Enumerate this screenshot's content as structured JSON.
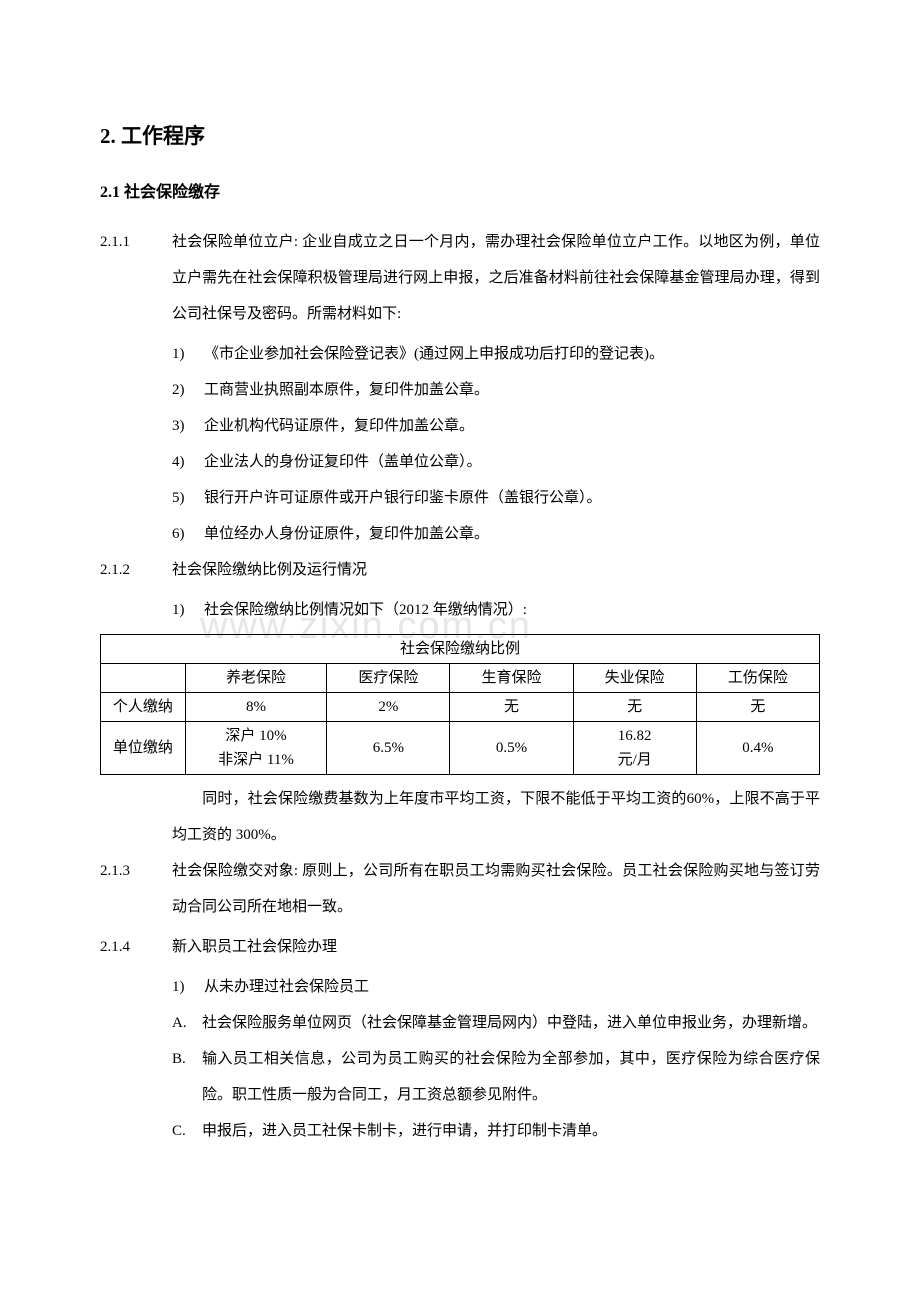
{
  "heading1": "2.  工作程序",
  "heading2": "2.1  社会保险缴存",
  "watermark": "www.zixin.com.cn",
  "section_2_1_1": {
    "num": "2.1.1",
    "text": "社会保险单位立户: 企业自成立之日一个月内，需办理社会保险单位立户工作。以地区为例，单位立户需先在社会保障积极管理局进行网上申报，之后准备材料前往社会保障基金管理局办理，得到公司社保号及密码。所需材料如下:",
    "items": [
      {
        "n": "1)",
        "t": "《市企业参加社会保险登记表》(通过网上申报成功后打印的登记表)。"
      },
      {
        "n": "2)",
        "t": "工商营业执照副本原件，复印件加盖公章。"
      },
      {
        "n": "3)",
        "t": "企业机构代码证原件，复印件加盖公章。"
      },
      {
        "n": "4)",
        "t": "企业法人的身份证复印件（盖单位公章）。"
      },
      {
        "n": "5)",
        "t": "银行开户许可证原件或开户银行印鉴卡原件（盖银行公章）。"
      },
      {
        "n": "6)",
        "t": "单位经办人身份证原件，复印件加盖公章。"
      }
    ]
  },
  "section_2_1_2": {
    "num": "2.1.2",
    "title": "社会保险缴纳比例及运行情况",
    "item1": {
      "n": "1)",
      "t": "社会保险缴纳比例情况如下（2012 年缴纳情况）:"
    },
    "after_para": "　　同时，社会保险缴费基数为上年度市平均工资，下限不能低于平均工资的60%，上限不高于平均工资的 300%。"
  },
  "table": {
    "title": "社会保险缴纳比例",
    "head": [
      "",
      "养老保险",
      "医疗保险",
      "生育保险",
      "失业保险",
      "工伤保险"
    ],
    "rows": [
      {
        "label": "个人缴纳",
        "cells": [
          "8%",
          "2%",
          "无",
          "无",
          "无"
        ]
      },
      {
        "label": "单位缴纳",
        "cells": [
          "深户 10%\n非深户 11%",
          "6.5%",
          "0.5%",
          "16.82\n元/月",
          "0.4%"
        ]
      }
    ],
    "col_widths": [
      "80px",
      "140px",
      "120px",
      "120px",
      "120px",
      "120px"
    ],
    "border_color": "#000000",
    "background_color": "#ffffff",
    "fontsize": 15
  },
  "section_2_1_3": {
    "num": "2.1.3",
    "text": "社会保险缴交对象: 原则上，公司所有在职员工均需购买社会保险。员工社会保险购买地与签订劳动合同公司所在地相一致。"
  },
  "section_2_1_4": {
    "num": "2.1.4",
    "title": "新入职员工社会保险办理",
    "item1": {
      "n": "1)",
      "t": "从未办理过社会保险员工"
    },
    "letters": [
      {
        "n": "A.",
        "t": "社会保险服务单位网页（社会保障基金管理局网内）中登陆，进入单位申报业务，办理新增。"
      },
      {
        "n": "B.",
        "t": "输入员工相关信息，公司为员工购买的社会保险为全部参加，其中，医疗保险为综合医疗保险。职工性质一般为合同工，月工资总额参见附件。"
      },
      {
        "n": "C.",
        "t": "申报后，进入员工社保卡制卡，进行申请，并打印制卡清单。"
      }
    ]
  }
}
